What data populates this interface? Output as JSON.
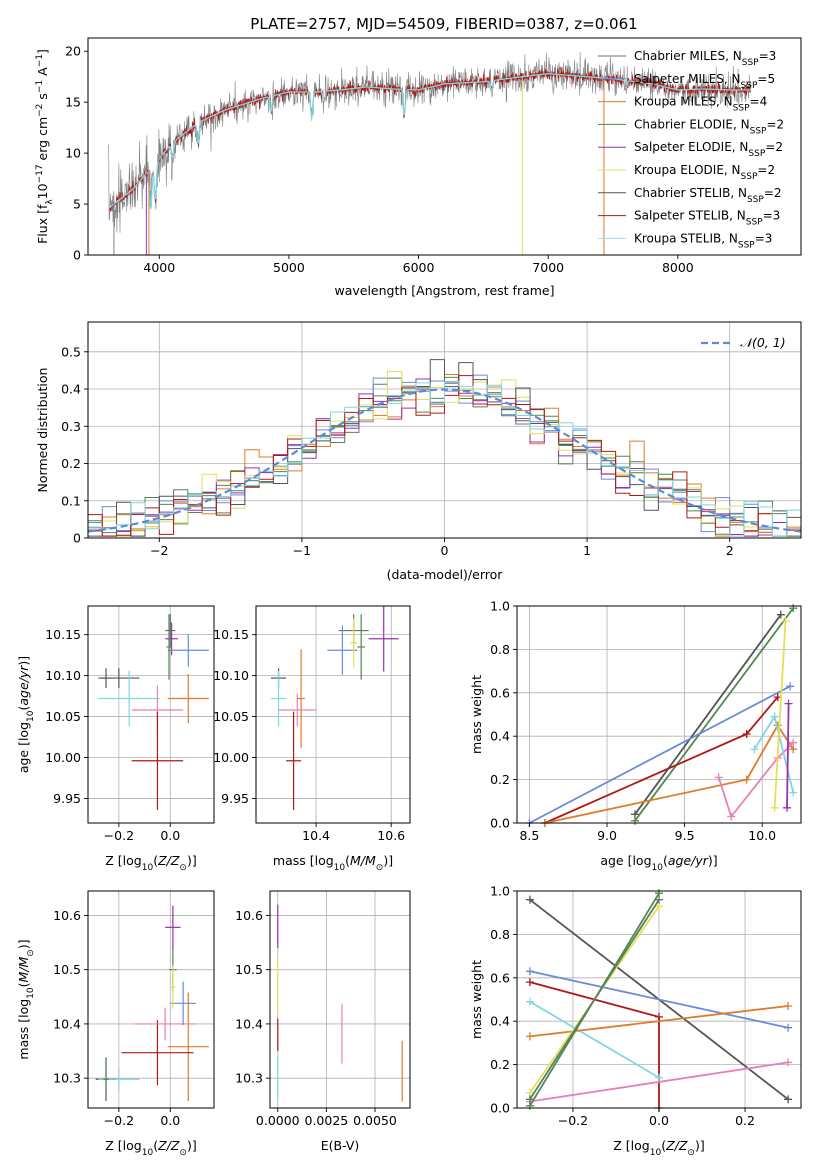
{
  "figure": {
    "title": "PLATE=2757, MJD=54509, FIBERID=0387, z=0.061"
  },
  "chart_data": [
    {
      "id": "spectrum",
      "type": "line",
      "xlabel": "wavelength [Angstrom, rest frame]",
      "ylabel": "Flux [f_λ 10^-17 erg cm^-2 s^-1 A^-1]",
      "xlim": [
        3450,
        8950
      ],
      "ylim": [
        0,
        21.3
      ],
      "xticks": [
        4000,
        5000,
        6000,
        7000,
        8000
      ],
      "yticks": [
        0,
        5,
        10,
        15,
        20
      ],
      "legend_position": "top-right",
      "data_color": "#808080",
      "model_color": "#7fd8e0",
      "continuum_anchors": [
        [
          3600,
          4.5
        ],
        [
          3700,
          5.5
        ],
        [
          3800,
          6.5
        ],
        [
          3900,
          8.0
        ],
        [
          4000,
          9.5
        ],
        [
          4100,
          11.0
        ],
        [
          4300,
          13.0
        ],
        [
          4500,
          14.2
        ],
        [
          4800,
          15.4
        ],
        [
          5000,
          16.0
        ],
        [
          5200,
          16.0
        ],
        [
          5400,
          16.2
        ],
        [
          5600,
          16.5
        ],
        [
          5800,
          16.3
        ],
        [
          6000,
          16.2
        ],
        [
          6200,
          16.8
        ],
        [
          6500,
          17.0
        ],
        [
          6800,
          17.5
        ],
        [
          7000,
          17.8
        ],
        [
          7200,
          17.6
        ],
        [
          7500,
          17.3
        ],
        [
          7800,
          16.8
        ],
        [
          8000,
          16.2
        ],
        [
          8200,
          16.3
        ],
        [
          8400,
          16.2
        ],
        [
          8560,
          16.2
        ]
      ],
      "legend": [
        {
          "text": "Chabrier MILES, N_SSP=3",
          "color": "#5e7d5e"
        },
        {
          "text": "Salpeter MILES, N_SSP=5",
          "color": "#6a8bd9"
        },
        {
          "text": "Kroupa MILES, N_SSP=4",
          "color": "#e07b28"
        },
        {
          "text": "Chabrier ELODIE, N_SSP=2",
          "color": "#4f8a4f"
        },
        {
          "text": "Salpeter ELODIE, N_SSP=2",
          "color": "#9b30b0"
        },
        {
          "text": "Kroupa ELODIE, N_SSP=2",
          "color": "#e3e05a"
        },
        {
          "text": "Chabrier STELIB, N_SSP=2",
          "color": "#555555"
        },
        {
          "text": "Salpeter STELIB, N_SSP=3",
          "color": "#b01818"
        },
        {
          "text": "Kroupa STELIB, N_SSP=3",
          "color": "#a6d8f0"
        }
      ]
    },
    {
      "id": "residuals",
      "type": "histogram",
      "xlabel": "(data-model)/error",
      "ylabel": "Normed distribution",
      "xlim": [
        -2.5,
        2.5
      ],
      "ylim": [
        0,
        0.58
      ],
      "xticks": [
        -2,
        -1,
        0,
        1,
        2
      ],
      "yticks": [
        0.0,
        0.1,
        0.2,
        0.3,
        0.4,
        0.5
      ],
      "grid": true,
      "legend": [
        {
          "text": "𝒩(0, 1)",
          "color": "#5b8bd6",
          "style": "dashed"
        }
      ],
      "legend_position": "top-right",
      "bin_width": 0.1,
      "series_colors": [
        "#5e7d5e",
        "#6a8bd9",
        "#e07b28",
        "#4f8a4f",
        "#9b30b0",
        "#e3e05a",
        "#555555",
        "#b01818",
        "#7fd8e0"
      ]
    },
    {
      "id": "age-vs-Z",
      "type": "scatter",
      "xlabel": "Z [log10(Z/Z⊙)]",
      "ylabel": "age  [log10(age/yr)]",
      "xlim": [
        -0.32,
        0.17
      ],
      "ylim": [
        9.92,
        10.185
      ],
      "xticks": [
        -0.2,
        0.0
      ],
      "xtick_labels": [
        "−0.2",
        "0.0"
      ],
      "yticks": [
        9.95,
        10.0,
        10.05,
        10.1,
        10.15
      ],
      "ytick_labels": [
        "9.95",
        "10.00",
        "10.05",
        "10.10",
        "10.15"
      ],
      "grid": true,
      "points": [
        {
          "x": -0.2,
          "y": 10.097,
          "xerr": 0.08,
          "yerr": 0.012,
          "color": "#555555"
        },
        {
          "x": -0.25,
          "y": 10.097,
          "xerr": 0.02,
          "yerr": 0.012,
          "color": "#555555"
        },
        {
          "x": -0.16,
          "y": 10.072,
          "xerr": 0.12,
          "yerr": 0.034,
          "color": "#7fd8e0"
        },
        {
          "x": 0.07,
          "y": 10.072,
          "xerr": 0.08,
          "yerr": 0.03,
          "color": "#e07b28"
        },
        {
          "x": -0.05,
          "y": 10.058,
          "xerr": 0.1,
          "yerr": 0.03,
          "color": "#e87fb8"
        },
        {
          "x": -0.05,
          "y": 9.996,
          "xerr": 0.1,
          "yerr": 0.06,
          "color": "#b01818"
        },
        {
          "x": 0.0,
          "y": 10.155,
          "xerr": 0.02,
          "yerr": 0.02,
          "color": "#5e7d5e"
        },
        {
          "x": 0.005,
          "y": 10.145,
          "xerr": 0.025,
          "yerr": 0.02,
          "color": "#9b30b0"
        },
        {
          "x": 0.07,
          "y": 10.131,
          "xerr": 0.08,
          "yerr": 0.02,
          "color": "#6a8bd9"
        },
        {
          "x": -0.005,
          "y": 10.135,
          "xerr": 0.01,
          "yerr": 0.04,
          "color": "#4f8a4f"
        }
      ]
    },
    {
      "id": "age-vs-mass",
      "type": "scatter",
      "xlabel": "mass [log10(M/M⊙)]",
      "ylabel": "",
      "xlim": [
        10.24,
        10.65
      ],
      "ylim": [
        9.92,
        10.185
      ],
      "xticks": [
        10.4,
        10.6
      ],
      "xtick_labels": [
        "10.4",
        "10.6"
      ],
      "yticks": [
        9.95,
        10.0,
        10.05,
        10.1,
        10.15
      ],
      "ytick_labels": [
        "9.95",
        "10.00",
        "10.05",
        "10.10",
        "10.15"
      ],
      "grid": true,
      "points": [
        {
          "x": 10.3,
          "y": 10.097,
          "xerr": 0.02,
          "yerr": 0.012,
          "color": "#555555"
        },
        {
          "x": 10.3,
          "y": 10.072,
          "xerr": 0.02,
          "yerr": 0.034,
          "color": "#7fd8e0"
        },
        {
          "x": 10.36,
          "y": 10.072,
          "xerr": 0.01,
          "yerr": 0.06,
          "color": "#e07b28"
        },
        {
          "x": 10.35,
          "y": 10.058,
          "xerr": 0.05,
          "yerr": 0.02,
          "color": "#e87fb8"
        },
        {
          "x": 10.34,
          "y": 9.996,
          "xerr": 0.02,
          "yerr": 0.06,
          "color": "#b01818"
        },
        {
          "x": 10.5,
          "y": 10.155,
          "xerr": 0.04,
          "yerr": 0.02,
          "color": "#5e7d5e"
        },
        {
          "x": 10.58,
          "y": 10.145,
          "xerr": 0.04,
          "yerr": 0.04,
          "color": "#9b30b0"
        },
        {
          "x": 10.47,
          "y": 10.131,
          "xerr": 0.04,
          "yerr": 0.03,
          "color": "#6a8bd9"
        },
        {
          "x": 10.5,
          "y": 10.14,
          "xerr": 0.01,
          "yerr": 0.03,
          "color": "#e3e05a"
        },
        {
          "x": 10.52,
          "y": 10.135,
          "xerr": 0.01,
          "yerr": 0.04,
          "color": "#4f8a4f"
        }
      ]
    },
    {
      "id": "weight-vs-age",
      "type": "line",
      "xlabel": "age  [log10(age/yr)]",
      "ylabel": "mass weight",
      "xlim": [
        8.42,
        10.25
      ],
      "ylim": [
        0,
        1.0
      ],
      "xticks": [
        8.5,
        9.0,
        9.5,
        10.0
      ],
      "xtick_labels": [
        "8.5",
        "9.0",
        "9.5",
        "10.0"
      ],
      "yticks": [
        0.0,
        0.2,
        0.4,
        0.6,
        0.8,
        1.0
      ],
      "ytick_labels": [
        "0.0",
        "0.2",
        "0.4",
        "0.6",
        "0.8",
        "1.0"
      ],
      "grid": true,
      "series": [
        {
          "color": "#555555",
          "x": [
            9.18,
            10.12
          ],
          "y": [
            0.04,
            0.96
          ]
        },
        {
          "color": "#4f8a4f",
          "x": [
            9.18,
            10.2
          ],
          "y": [
            0.01,
            0.99
          ]
        },
        {
          "color": "#6a8bd9",
          "x": [
            8.5,
            10.18
          ],
          "y": [
            0.0,
            0.63
          ]
        },
        {
          "color": "#b01818",
          "x": [
            8.6,
            9.9,
            10.1
          ],
          "y": [
            0.0,
            0.41,
            0.58
          ]
        },
        {
          "color": "#e07b28",
          "x": [
            8.6,
            9.9,
            10.1,
            10.2
          ],
          "y": [
            0.0,
            0.2,
            0.45,
            0.34
          ]
        },
        {
          "color": "#e87fb8",
          "x": [
            9.72,
            9.8,
            10.1,
            10.2
          ],
          "y": [
            0.21,
            0.03,
            0.3,
            0.37
          ]
        },
        {
          "color": "#7fd8e0",
          "x": [
            9.95,
            10.08,
            10.2
          ],
          "y": [
            0.34,
            0.49,
            0.14
          ]
        },
        {
          "color": "#9b30b0",
          "x": [
            10.16,
            10.17
          ],
          "y": [
            0.07,
            0.55
          ]
        },
        {
          "color": "#e3e05a",
          "x": [
            10.08,
            10.15
          ],
          "y": [
            0.07,
            0.93
          ]
        }
      ]
    },
    {
      "id": "mass-vs-Z",
      "type": "scatter",
      "xlabel": "Z [log10(Z/Z⊙)]",
      "ylabel": "mass [log10(M/M⊙)]",
      "xlim": [
        -0.32,
        0.17
      ],
      "ylim": [
        10.245,
        10.645
      ],
      "xticks": [
        -0.2,
        0.0
      ],
      "xtick_labels": [
        "−0.2",
        "0.0"
      ],
      "yticks": [
        10.3,
        10.4,
        10.5,
        10.6
      ],
      "ytick_labels": [
        "10.3",
        "10.4",
        "10.5",
        "10.6"
      ],
      "grid": true,
      "points": [
        {
          "x": -0.25,
          "y": 10.298,
          "xerr": 0.04,
          "yerr": 0.04,
          "color": "#555555"
        },
        {
          "x": -0.2,
          "y": 10.298,
          "xerr": 0.08,
          "yerr": 0.02,
          "color": "#7fd8e0"
        },
        {
          "x": -0.25,
          "y": 10.298,
          "xerr": 0.01,
          "yerr": 0.03,
          "color": "#4f8a4f"
        },
        {
          "x": 0.07,
          "y": 10.358,
          "xerr": 0.08,
          "yerr": 0.1,
          "color": "#e07b28"
        },
        {
          "x": -0.05,
          "y": 10.347,
          "xerr": 0.14,
          "yerr": 0.06,
          "color": "#b01818"
        },
        {
          "x": -0.02,
          "y": 10.4,
          "xerr": 0.12,
          "yerr": 0.03,
          "color": "#e87fb8"
        },
        {
          "x": 0.05,
          "y": 10.438,
          "xerr": 0.05,
          "yerr": 0.04,
          "color": "#6a8bd9"
        },
        {
          "x": 0.01,
          "y": 10.5,
          "xerr": 0.015,
          "yerr": 0.04,
          "color": "#4f8a4f"
        },
        {
          "x": 0.01,
          "y": 10.468,
          "xerr": 0.01,
          "yerr": 0.04,
          "color": "#e3e05a"
        },
        {
          "x": 0.01,
          "y": 10.578,
          "xerr": 0.03,
          "yerr": 0.04,
          "color": "#9b30b0"
        }
      ]
    },
    {
      "id": "mass-vs-EBV",
      "type": "scatter",
      "xlabel": "E(B-V)",
      "ylabel": "",
      "xlim": [
        -0.0004,
        0.0068
      ],
      "ylim": [
        10.245,
        10.645
      ],
      "xticks": [
        0.0,
        0.0025,
        0.005
      ],
      "xtick_labels": [
        "0.0000",
        "0.0025",
        "0.0050"
      ],
      "yticks": [
        10.3,
        10.4,
        10.5,
        10.6
      ],
      "ytick_labels": [
        "10.3",
        "10.4",
        "10.5",
        "10.6"
      ],
      "grid": true,
      "points": [
        {
          "x": 0.0,
          "y": 10.58,
          "xerr": 0,
          "yerr": 0.04,
          "color": "#9b30b0"
        },
        {
          "x": 0.0,
          "y": 10.47,
          "xerr": 0,
          "yerr": 0.05,
          "color": "#e3e05a"
        },
        {
          "x": 0.0,
          "y": 10.38,
          "xerr": 0,
          "yerr": 0.03,
          "color": "#b01818"
        },
        {
          "x": 0.0,
          "y": 10.3,
          "xerr": 0,
          "yerr": 0.04,
          "color": "#7fd8e0"
        },
        {
          "x": 0.0033,
          "y": 10.382,
          "xerr": 0,
          "yerr": 0.055,
          "color": "#e87fb8"
        },
        {
          "x": 0.0064,
          "y": 10.313,
          "xerr": 0,
          "yerr": 0.056,
          "color": "#e07b28"
        }
      ]
    },
    {
      "id": "weight-vs-Z",
      "type": "line",
      "xlabel": "Z [log10(Z/Z⊙)]",
      "ylabel": "mass weight",
      "xlim": [
        -0.33,
        0.33
      ],
      "ylim": [
        0,
        1.0
      ],
      "xticks": [
        -0.2,
        0.0,
        0.2
      ],
      "xtick_labels": [
        "−0.2",
        "0.0",
        "0.2"
      ],
      "yticks": [
        0.0,
        0.2,
        0.4,
        0.6,
        0.8,
        1.0
      ],
      "ytick_labels": [
        "0.0",
        "0.2",
        "0.4",
        "0.6",
        "0.8",
        "1.0"
      ],
      "grid": true,
      "series": [
        {
          "color": "#555555",
          "x": [
            -0.3,
            0.3
          ],
          "y": [
            0.96,
            0.04
          ]
        },
        {
          "color": "#6a8bd9",
          "x": [
            -0.3,
            0.3
          ],
          "y": [
            0.63,
            0.37
          ]
        },
        {
          "color": "#b01818",
          "x": [
            -0.3,
            0.0,
            0.0
          ],
          "y": [
            0.58,
            0.42,
            0.0
          ]
        },
        {
          "color": "#7fd8e0",
          "x": [
            -0.3,
            0.0
          ],
          "y": [
            0.49,
            0.14
          ]
        },
        {
          "color": "#e07b28",
          "x": [
            -0.3,
            0.3
          ],
          "y": [
            0.33,
            0.47
          ]
        },
        {
          "color": "#e87fb8",
          "x": [
            -0.3,
            0.3
          ],
          "y": [
            0.03,
            0.21
          ]
        },
        {
          "color": "#4f8a4f",
          "x": [
            -0.3,
            0.0
          ],
          "y": [
            0.01,
            0.99
          ]
        },
        {
          "color": "#e3e05a",
          "x": [
            -0.3,
            0.0
          ],
          "y": [
            0.07,
            0.93
          ]
        },
        {
          "color": "#5e7d5e",
          "x": [
            -0.3,
            0.0
          ],
          "y": [
            0.04,
            0.96
          ]
        }
      ]
    }
  ]
}
